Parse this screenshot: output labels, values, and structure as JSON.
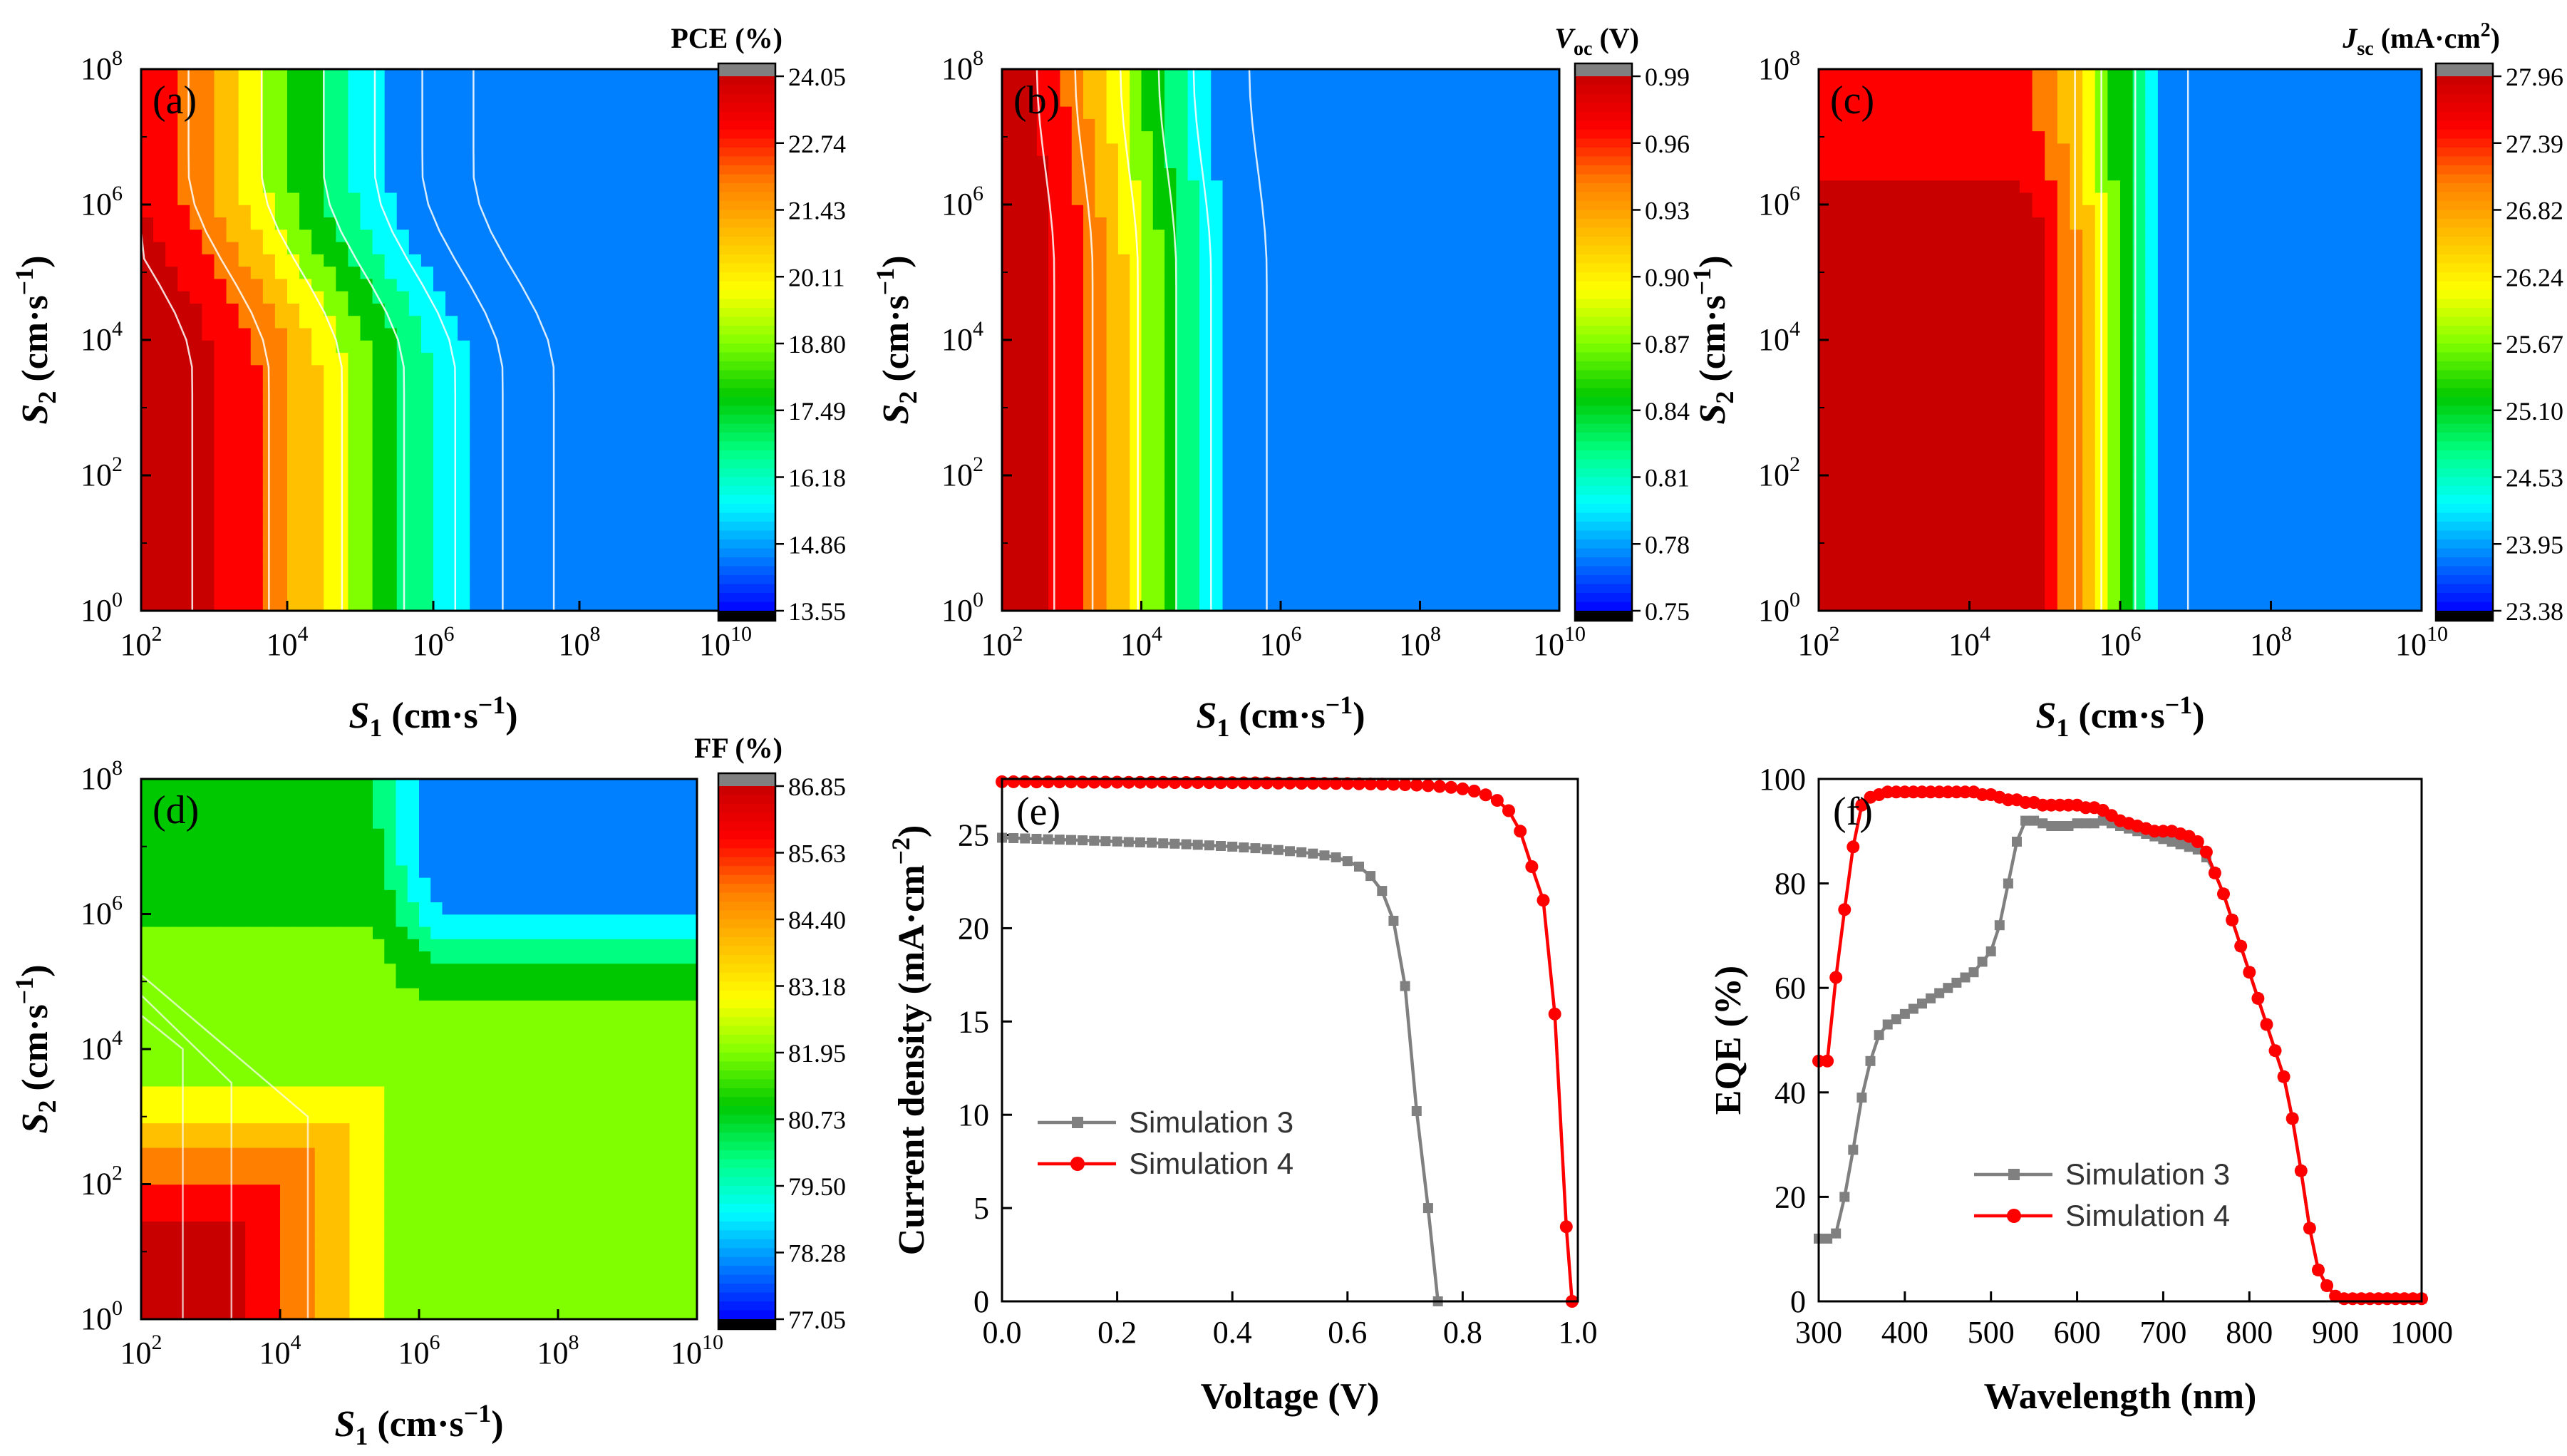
{
  "figure": {
    "panels": [
      {
        "id": "a",
        "label": "(a)"
      },
      {
        "id": "b",
        "label": "(b)"
      },
      {
        "id": "c",
        "label": "(c)"
      },
      {
        "id": "d",
        "label": "(d)"
      },
      {
        "id": "e",
        "label": "(e)"
      },
      {
        "id": "f",
        "label": "(f)"
      }
    ]
  },
  "colormap": [
    "#000000",
    "#0000ff",
    "#0080ff",
    "#00ffff",
    "#00ff80",
    "#00c800",
    "#80ff00",
    "#ffff00",
    "#ffc000",
    "#ff8000",
    "#ff0000",
    "#c80000",
    "#808080"
  ],
  "chart_data": [
    {
      "panel": "a",
      "type": "heatmap",
      "title": "PCE (%)",
      "title_parts": {
        "main": "PCE (%)"
      },
      "xlabel": "S1 (cm·s−1)",
      "xlabel_parts": {
        "var": "S",
        "sub": "1",
        "unit_pre": " (cm·s",
        "unit_sup": "−1",
        "unit_post": ")"
      },
      "ylabel": "S2 (cm·s−1)",
      "ylabel_parts": {
        "var": "S",
        "sub": "2",
        "unit_pre": " (cm·s",
        "unit_sup": "−1",
        "unit_post": ")"
      },
      "x_ticks": [
        "2",
        "4",
        "6",
        "8",
        "10"
      ],
      "y_ticks": [
        "0",
        "2",
        "4",
        "6",
        "8"
      ],
      "x_log_range": [
        2,
        10
      ],
      "y_log_range": [
        0,
        8
      ],
      "colorbar_ticks": [
        "24.05",
        "22.74",
        "21.43",
        "20.11",
        "18.80",
        "17.49",
        "16.18",
        "14.86",
        "13.55"
      ],
      "colorbar_range": [
        13.55,
        24.05
      ],
      "contours_x_at_low_S2": [
        2.7,
        3.75,
        4.75,
        5.6,
        6.3,
        6.95,
        7.65
      ],
      "contour_shape": "vertical bands at low S2, bending toward lower S1 above S2≈10^4; blue plateau at high S1/S2 (≈14)",
      "value_at_origin": 24.0,
      "value_at_far_corner": 13.8
    },
    {
      "panel": "b",
      "type": "heatmap",
      "title": "Voc (V)",
      "title_parts": {
        "var": "V",
        "sub": "oc",
        "unit": " (V)"
      },
      "xlabel": "S1 (cm·s−1)",
      "xlabel_parts": {
        "var": "S",
        "sub": "1",
        "unit_pre": " (cm·s",
        "unit_sup": "−1",
        "unit_post": ")"
      },
      "ylabel": "S2 (cm·s−1)",
      "ylabel_parts": {
        "var": "S",
        "sub": "2",
        "unit_pre": " (cm·s",
        "unit_sup": "−1",
        "unit_post": ")"
      },
      "x_ticks": [
        "2",
        "4",
        "6",
        "8",
        "10"
      ],
      "y_ticks": [
        "0",
        "2",
        "4",
        "6",
        "8"
      ],
      "x_log_range": [
        2,
        10
      ],
      "y_log_range": [
        0,
        8
      ],
      "colorbar_ticks": [
        "0.99",
        "0.96",
        "0.93",
        "0.90",
        "0.87",
        "0.84",
        "0.81",
        "0.78",
        "0.75"
      ],
      "colorbar_range": [
        0.75,
        0.99
      ],
      "contours_x": [
        2.75,
        3.3,
        3.95,
        4.5,
        5.0,
        5.8
      ],
      "contour_shape": "nearly vertical bands depending only on S1; uniform blue (≈0.76) for S1 > 10^6",
      "value_at_origin": 0.985,
      "value_at_far_corner": 0.76
    },
    {
      "panel": "c",
      "type": "heatmap",
      "title": "Jsc (mA·cm2)",
      "title_parts": {
        "var": "J",
        "sub": "sc",
        "unit_pre": " (mA·cm",
        "unit_sup": "2",
        "unit_post": ")"
      },
      "xlabel": "S1 (cm·s−1)",
      "xlabel_parts": {
        "var": "S",
        "sub": "1",
        "unit_pre": " (cm·s",
        "unit_sup": "−1",
        "unit_post": ")"
      },
      "ylabel": "S2 (cm·s−1)",
      "ylabel_parts": {
        "var": "S",
        "sub": "2",
        "unit_pre": " (cm·s",
        "unit_sup": "−1",
        "unit_post": ")"
      },
      "x_ticks": [
        "2",
        "4",
        "6",
        "8",
        "10"
      ],
      "y_ticks": [
        "0",
        "2",
        "4",
        "6",
        "8"
      ],
      "x_log_range": [
        2,
        10
      ],
      "y_log_range": [
        0,
        8
      ],
      "colorbar_ticks": [
        "27.96",
        "27.39",
        "26.82",
        "26.24",
        "25.67",
        "25.10",
        "24.53",
        "23.95",
        "23.38"
      ],
      "colorbar_range": [
        23.38,
        27.96
      ],
      "contours_x": [
        5.4,
        5.75,
        6.2,
        6.9
      ],
      "contour_shape": "red plateau (≈27.9) for S1 < 10^5 and S2 < 10^6; sharp drop near S1 ≈ 10^6; blue for S1 > 10^7",
      "value_at_origin": 27.9,
      "value_at_far_corner": 23.6
    },
    {
      "panel": "d",
      "type": "heatmap",
      "title": "FF (%)",
      "title_parts": {
        "main": "FF (%)"
      },
      "xlabel": "S1 (cm·s−1)",
      "xlabel_parts": {
        "var": "S",
        "sub": "1",
        "unit_pre": " (cm·s",
        "unit_sup": "−1",
        "unit_post": ")"
      },
      "ylabel": "S2 (cm·s−1)",
      "ylabel_parts": {
        "var": "S",
        "sub": "2",
        "unit_pre": " (cm·s",
        "unit_sup": "−1",
        "unit_post": ")"
      },
      "x_ticks": [
        "2",
        "4",
        "6",
        "8",
        "10"
      ],
      "y_ticks": [
        "0",
        "2",
        "4",
        "6",
        "8"
      ],
      "x_log_range": [
        2,
        10
      ],
      "y_log_range": [
        0,
        8
      ],
      "colorbar_ticks": [
        "86.85",
        "85.63",
        "84.40",
        "83.18",
        "81.95",
        "80.73",
        "79.50",
        "78.28",
        "77.05"
      ],
      "colorbar_range": [
        77.05,
        86.85
      ],
      "contour_shape": "red corner at low S1/S2 (≈86.5); green plateau (≈81.8) for S1 > 10^6 at low S2; blue (≈77.5) at high S1 and high S2",
      "value_at_origin": 86.5,
      "value_at_far_corner": 77.5
    },
    {
      "panel": "e",
      "type": "line",
      "xlabel": "Voltage (V)",
      "ylabel": "Current density (mA·cm−2)",
      "ylabel_parts": {
        "main": "Current density (mA·cm",
        "sup": "−2",
        "post": ")"
      },
      "xlim": [
        0,
        1.0
      ],
      "ylim": [
        0,
        28
      ],
      "x_ticks": [
        "0.0",
        "0.2",
        "0.4",
        "0.6",
        "0.8",
        "1.0"
      ],
      "y_ticks": [
        "0",
        "5",
        "10",
        "15",
        "20",
        "25"
      ],
      "legend_position": "lower-left",
      "series": [
        {
          "name": "Simulation 3",
          "color": "#808080",
          "marker": "square",
          "x": [
            0.0,
            0.02,
            0.04,
            0.06,
            0.08,
            0.1,
            0.12,
            0.14,
            0.16,
            0.18,
            0.2,
            0.22,
            0.24,
            0.26,
            0.28,
            0.3,
            0.32,
            0.34,
            0.36,
            0.38,
            0.4,
            0.42,
            0.44,
            0.46,
            0.48,
            0.5,
            0.52,
            0.54,
            0.56,
            0.58,
            0.6,
            0.62,
            0.64,
            0.66,
            0.68,
            0.7,
            0.72,
            0.74,
            0.757
          ],
          "y": [
            24.85,
            24.83,
            24.81,
            24.79,
            24.77,
            24.75,
            24.73,
            24.71,
            24.69,
            24.67,
            24.65,
            24.62,
            24.6,
            24.58,
            24.55,
            24.53,
            24.5,
            24.47,
            24.44,
            24.41,
            24.37,
            24.33,
            24.29,
            24.24,
            24.19,
            24.13,
            24.07,
            24.0,
            23.9,
            23.8,
            23.6,
            23.3,
            22.8,
            22.0,
            20.4,
            16.9,
            10.2,
            5.0,
            0.0
          ]
        },
        {
          "name": "Simulation 4",
          "color": "#ff0000",
          "marker": "circle",
          "x": [
            0.0,
            0.02,
            0.04,
            0.06,
            0.08,
            0.1,
            0.12,
            0.14,
            0.16,
            0.18,
            0.2,
            0.22,
            0.24,
            0.26,
            0.28,
            0.3,
            0.32,
            0.34,
            0.36,
            0.38,
            0.4,
            0.42,
            0.44,
            0.46,
            0.48,
            0.5,
            0.52,
            0.54,
            0.56,
            0.58,
            0.6,
            0.62,
            0.64,
            0.66,
            0.68,
            0.7,
            0.72,
            0.74,
            0.76,
            0.78,
            0.8,
            0.82,
            0.84,
            0.86,
            0.88,
            0.9,
            0.92,
            0.94,
            0.96,
            0.98,
            0.99
          ],
          "y": [
            27.85,
            27.85,
            27.85,
            27.84,
            27.84,
            27.84,
            27.84,
            27.83,
            27.83,
            27.83,
            27.83,
            27.82,
            27.82,
            27.82,
            27.82,
            27.81,
            27.81,
            27.81,
            27.8,
            27.8,
            27.8,
            27.79,
            27.79,
            27.79,
            27.78,
            27.78,
            27.77,
            27.77,
            27.76,
            27.76,
            27.75,
            27.74,
            27.73,
            27.72,
            27.71,
            27.69,
            27.67,
            27.64,
            27.6,
            27.55,
            27.47,
            27.35,
            27.15,
            26.85,
            26.3,
            25.2,
            23.3,
            21.5,
            15.4,
            4.0,
            0.0
          ]
        }
      ]
    },
    {
      "panel": "f",
      "type": "line",
      "xlabel": "Wavelength (nm)",
      "ylabel": "EQE (%)",
      "xlim": [
        300,
        1000
      ],
      "ylim": [
        0,
        100
      ],
      "x_ticks": [
        "300",
        "400",
        "500",
        "600",
        "700",
        "800",
        "900",
        "1000"
      ],
      "y_ticks": [
        "0",
        "20",
        "40",
        "60",
        "80",
        "100"
      ],
      "legend_position": "lower-left",
      "series": [
        {
          "name": "Simulation 3",
          "color": "#808080",
          "marker": "square",
          "x": [
            300,
            310,
            320,
            330,
            340,
            350,
            360,
            370,
            380,
            390,
            400,
            410,
            420,
            430,
            440,
            450,
            460,
            470,
            480,
            490,
            500,
            510,
            520,
            530,
            540,
            550,
            560,
            570,
            580,
            590,
            600,
            610,
            620,
            630,
            640,
            650,
            660,
            670,
            680,
            690,
            700,
            710,
            720,
            730,
            740,
            750,
            760,
            770,
            780,
            790,
            800,
            810,
            820,
            830,
            840,
            850,
            860,
            870,
            880,
            890,
            900,
            910,
            920,
            930,
            940,
            950,
            960,
            970,
            980,
            990,
            1000
          ],
          "y": [
            12,
            12,
            13,
            20,
            29,
            39,
            46,
            51,
            53,
            54,
            55,
            56,
            57,
            58,
            59,
            60,
            61,
            62,
            63,
            65,
            67,
            72,
            80,
            88,
            92,
            92,
            91.5,
            91,
            91,
            91,
            91.5,
            91.5,
            91.5,
            92,
            91.5,
            91,
            90.5,
            90,
            89.5,
            89,
            88.5,
            88,
            87.5,
            87,
            86.5,
            85,
            82,
            78,
            73,
            68,
            63,
            58,
            53,
            48,
            43,
            35,
            25,
            14,
            6,
            3,
            1,
            0.5,
            0.5,
            0.5,
            0.5,
            0.5,
            0.5,
            0.5,
            0.5,
            0.5,
            0.5
          ]
        },
        {
          "name": "Simulation 4",
          "color": "#ff0000",
          "marker": "circle",
          "x": [
            300,
            310,
            320,
            330,
            340,
            350,
            360,
            370,
            380,
            390,
            400,
            410,
            420,
            430,
            440,
            450,
            460,
            470,
            480,
            490,
            500,
            510,
            520,
            530,
            540,
            550,
            560,
            570,
            580,
            590,
            600,
            610,
            620,
            630,
            640,
            650,
            660,
            670,
            680,
            690,
            700,
            710,
            720,
            730,
            740,
            750,
            760,
            770,
            780,
            790,
            800,
            810,
            820,
            830,
            840,
            850,
            860,
            870,
            880,
            890,
            900,
            910,
            920,
            930,
            940,
            950,
            960,
            970,
            980,
            990,
            1000
          ],
          "y": [
            46,
            46,
            62,
            75,
            87,
            95,
            96.5,
            97,
            97.5,
            97.5,
            97.5,
            97.5,
            97.5,
            97.5,
            97.5,
            97.5,
            97.5,
            97.5,
            97.5,
            97,
            97,
            96.5,
            96,
            96,
            95.5,
            95.5,
            95,
            95,
            95,
            95,
            95,
            94.5,
            94.5,
            94,
            93,
            92,
            91.5,
            91,
            90.5,
            90,
            90,
            90,
            89.5,
            89,
            88,
            86,
            82,
            78,
            73,
            68,
            63,
            58,
            53,
            48,
            43,
            35,
            25,
            14,
            6,
            3,
            1,
            0.5,
            0.5,
            0.5,
            0.5,
            0.5,
            0.5,
            0.5,
            0.5,
            0.5,
            0.5
          ]
        }
      ]
    }
  ]
}
